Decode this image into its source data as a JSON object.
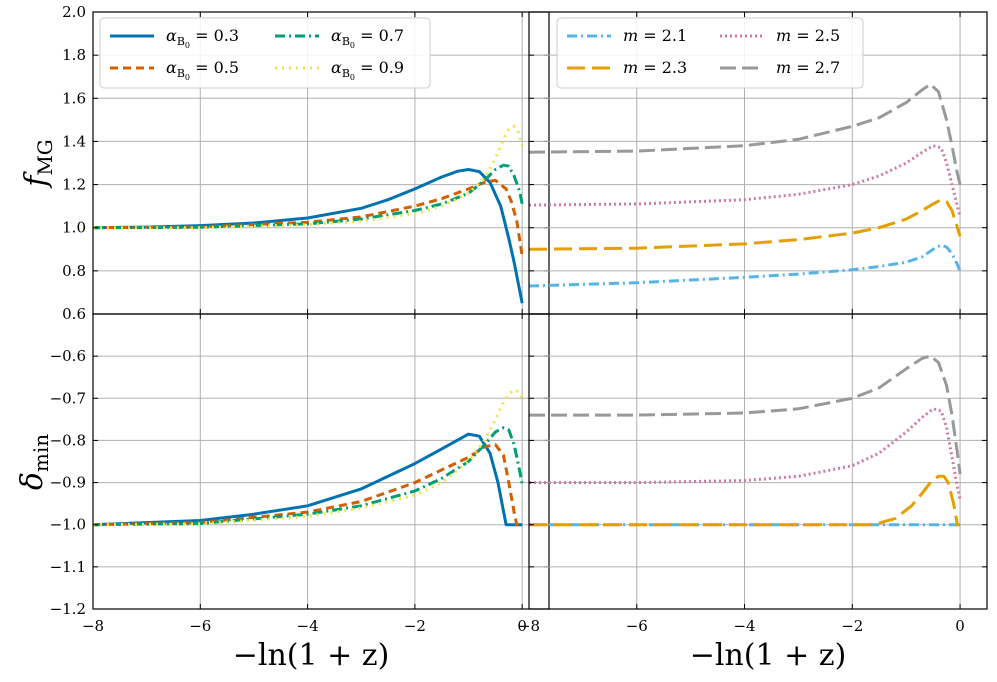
{
  "figure": {
    "ylabel_top": "f_MG",
    "ylabel_bottom": "δ_min",
    "xlabel": "−ln(1 + z)"
  },
  "chart_data": [
    {
      "id": "fmg-alpha",
      "type": "line",
      "title": "",
      "xlabel": "",
      "ylabel": "f_MG",
      "xlim": [
        -8,
        0.5
      ],
      "ylim": [
        0.6,
        2.0
      ],
      "xticks": [
        -8,
        -6,
        -4,
        -2,
        0
      ],
      "yticks": [
        0.6,
        0.8,
        1.0,
        1.2,
        1.4,
        1.6,
        1.8,
        2.0
      ],
      "ytick_labels": [
        "0.6",
        "0.8",
        "1.0",
        "1.2",
        "1.4",
        "1.6",
        "1.8",
        "2.0"
      ],
      "show_xtick_labels": false,
      "show_ytick_labels": true,
      "grid": true,
      "legend_position": "top-left",
      "legend_columns": 2,
      "series": [
        {
          "name": "α_B0 = 0.3",
          "label_value": "0.3",
          "color": "#0072b2",
          "dash": "solid",
          "x": [
            -8,
            -7,
            -6,
            -5,
            -4,
            -3,
            -2.5,
            -2,
            -1.5,
            -1.2,
            -1,
            -0.8,
            -0.6,
            -0.4,
            -0.25,
            -0.15,
            0
          ],
          "y": [
            1.0,
            1.003,
            1.01,
            1.022,
            1.045,
            1.09,
            1.13,
            1.18,
            1.235,
            1.262,
            1.27,
            1.26,
            1.21,
            1.1,
            0.95,
            0.84,
            0.65
          ]
        },
        {
          "name": "α_B0 = 0.5",
          "label_value": "0.5",
          "color": "#d55e00",
          "dash": "8,5",
          "x": [
            -8,
            -6,
            -4,
            -3,
            -2,
            -1.5,
            -1,
            -0.7,
            -0.5,
            -0.3,
            -0.2,
            -0.1,
            0
          ],
          "y": [
            1.0,
            1.004,
            1.025,
            1.05,
            1.1,
            1.135,
            1.18,
            1.21,
            1.22,
            1.18,
            1.12,
            1.03,
            0.87
          ]
        },
        {
          "name": "α_B0 = 0.7",
          "label_value": "0.7",
          "color": "#009e73",
          "dash": "10,4,2,4",
          "x": [
            -8,
            -6,
            -4,
            -3,
            -2,
            -1.5,
            -1,
            -0.7,
            -0.5,
            -0.35,
            -0.25,
            -0.15,
            -0.05,
            0
          ],
          "y": [
            1.0,
            1.002,
            1.018,
            1.04,
            1.08,
            1.11,
            1.16,
            1.22,
            1.27,
            1.29,
            1.285,
            1.24,
            1.17,
            1.11
          ]
        },
        {
          "name": "α_B0 = 0.9",
          "label_value": "0.9",
          "color": "#f0e442",
          "dash": "2,5",
          "x": [
            -8,
            -6,
            -4,
            -3,
            -2,
            -1.5,
            -1,
            -0.7,
            -0.5,
            -0.35,
            -0.25,
            -0.15,
            -0.08,
            0
          ],
          "y": [
            1.0,
            1.0,
            1.014,
            1.03,
            1.065,
            1.1,
            1.16,
            1.23,
            1.32,
            1.41,
            1.455,
            1.47,
            1.45,
            1.38
          ]
        }
      ]
    },
    {
      "id": "fmg-m",
      "type": "line",
      "title": "",
      "xlabel": "",
      "ylabel": "",
      "xlim": [
        -8,
        0.5
      ],
      "ylim": [
        0.6,
        2.0
      ],
      "xticks": [
        -8,
        -6,
        -4,
        -2,
        0
      ],
      "yticks": [
        0.6,
        0.8,
        1.0,
        1.2,
        1.4,
        1.6,
        1.8,
        2.0
      ],
      "show_xtick_labels": false,
      "show_ytick_labels": false,
      "grid": true,
      "legend_position": "top-left",
      "legend_columns": 2,
      "series": [
        {
          "name": "m = 2.1",
          "label_value": "2.1",
          "color": "#56b4e9",
          "dash": "10,4,2,4",
          "x": [
            -8,
            -6,
            -4,
            -3,
            -2,
            -1.5,
            -1,
            -0.7,
            -0.5,
            -0.35,
            -0.25,
            -0.15,
            -0.05,
            0
          ],
          "y": [
            0.73,
            0.745,
            0.77,
            0.785,
            0.805,
            0.82,
            0.84,
            0.865,
            0.9,
            0.92,
            0.91,
            0.88,
            0.83,
            0.8
          ]
        },
        {
          "name": "m = 2.3",
          "label_value": "2.3",
          "color": "#e69f00",
          "dash": "18,7",
          "x": [
            -8,
            -6,
            -4,
            -3,
            -2,
            -1.5,
            -1,
            -0.7,
            -0.5,
            -0.35,
            -0.25,
            -0.15,
            -0.05,
            0
          ],
          "y": [
            0.9,
            0.905,
            0.925,
            0.945,
            0.975,
            1.0,
            1.04,
            1.08,
            1.11,
            1.13,
            1.12,
            1.08,
            1.0,
            0.96
          ]
        },
        {
          "name": "m = 2.5",
          "label_value": "2.5",
          "color": "#cc79a7",
          "dash": "2,3",
          "x": [
            -8,
            -6,
            -4,
            -3,
            -2,
            -1.5,
            -1,
            -0.7,
            -0.5,
            -0.35,
            -0.25,
            -0.15,
            -0.05,
            0
          ],
          "y": [
            1.105,
            1.11,
            1.13,
            1.155,
            1.2,
            1.24,
            1.3,
            1.35,
            1.38,
            1.37,
            1.3,
            1.2,
            1.1,
            1.05
          ]
        },
        {
          "name": "m = 2.7",
          "label_value": "2.7",
          "color": "#999999",
          "dash": "16,6",
          "x": [
            -8,
            -6,
            -4,
            -3,
            -2,
            -1.5,
            -1,
            -0.7,
            -0.55,
            -0.4,
            -0.25,
            -0.15,
            -0.05,
            0
          ],
          "y": [
            1.35,
            1.355,
            1.38,
            1.41,
            1.47,
            1.51,
            1.58,
            1.64,
            1.665,
            1.63,
            1.5,
            1.38,
            1.25,
            1.2
          ]
        }
      ]
    },
    {
      "id": "dmin-alpha",
      "type": "line",
      "title": "",
      "xlabel": "−ln(1 + z)",
      "ylabel": "δ_min",
      "xlim": [
        -8,
        0.5
      ],
      "ylim": [
        -1.2,
        -0.5
      ],
      "xticks": [
        -8,
        -6,
        -4,
        -2,
        0
      ],
      "xtick_labels": [
        "−8",
        "−6",
        "−4",
        "−2",
        "0"
      ],
      "yticks": [
        -1.2,
        -1.1,
        -1.0,
        -0.9,
        -0.8,
        -0.7,
        -0.6,
        -0.5
      ],
      "ytick_labels": [
        "−1.2",
        "−1.1",
        "−1.0",
        "−0.9",
        "−0.8",
        "−0.7",
        "−0.6",
        ""
      ],
      "show_xtick_labels": true,
      "show_ytick_labels": true,
      "grid": true,
      "series": [
        {
          "name": "α_B0 = 0.3",
          "color": "#0072b2",
          "dash": "solid",
          "x": [
            -8,
            -6,
            -5,
            -4,
            -3,
            -2,
            -1.5,
            -1,
            -0.8,
            -0.6,
            -0.45,
            -0.3,
            -0.2,
            0
          ],
          "y": [
            -1.0,
            -0.99,
            -0.975,
            -0.955,
            -0.915,
            -0.855,
            -0.82,
            -0.785,
            -0.79,
            -0.83,
            -0.9,
            -1.0,
            -1.0,
            -1.0
          ]
        },
        {
          "name": "α_B0 = 0.5",
          "color": "#d55e00",
          "dash": "8,5",
          "x": [
            -8,
            -6,
            -4,
            -3,
            -2,
            -1.5,
            -1,
            -0.7,
            -0.5,
            -0.35,
            -0.25,
            -0.15,
            -0.1,
            0
          ],
          "y": [
            -1.0,
            -0.995,
            -0.97,
            -0.945,
            -0.9,
            -0.87,
            -0.84,
            -0.815,
            -0.81,
            -0.835,
            -0.9,
            -0.97,
            -1.0,
            -1.0
          ]
        },
        {
          "name": "α_B0 = 0.7",
          "color": "#009e73",
          "dash": "10,4,2,4",
          "x": [
            -8,
            -6,
            -4,
            -3,
            -2,
            -1.5,
            -1,
            -0.7,
            -0.5,
            -0.35,
            -0.25,
            -0.15,
            -0.05,
            0
          ],
          "y": [
            -1.0,
            -0.997,
            -0.975,
            -0.955,
            -0.92,
            -0.89,
            -0.85,
            -0.81,
            -0.78,
            -0.77,
            -0.775,
            -0.81,
            -0.87,
            -0.905
          ]
        },
        {
          "name": "α_B0 = 0.9",
          "color": "#f0e442",
          "dash": "2,5",
          "x": [
            -8,
            -6,
            -4,
            -3,
            -2,
            -1.5,
            -1,
            -0.7,
            -0.5,
            -0.35,
            -0.25,
            -0.15,
            -0.05,
            0
          ],
          "y": [
            -1.0,
            -0.998,
            -0.98,
            -0.96,
            -0.93,
            -0.9,
            -0.85,
            -0.8,
            -0.75,
            -0.71,
            -0.69,
            -0.68,
            -0.685,
            -0.7
          ]
        }
      ]
    },
    {
      "id": "dmin-m",
      "type": "line",
      "title": "",
      "xlabel": "−ln(1 + z)",
      "ylabel": "",
      "xlim": [
        -8,
        0.5
      ],
      "ylim": [
        -1.2,
        -0.5
      ],
      "xticks": [
        -8,
        -6,
        -4,
        -2,
        0
      ],
      "xtick_labels": [
        "−8",
        "−6",
        "−4",
        "−2",
        "0"
      ],
      "yticks": [
        -1.2,
        -1.1,
        -1.0,
        -0.9,
        -0.8,
        -0.7,
        -0.6,
        -0.5
      ],
      "show_xtick_labels": true,
      "show_ytick_labels": false,
      "grid": true,
      "series": [
        {
          "name": "m = 2.1",
          "color": "#56b4e9",
          "dash": "10,4,2,4",
          "x": [
            -8,
            -4,
            -2,
            -1,
            0
          ],
          "y": [
            -1.0,
            -1.0,
            -1.0,
            -1.0,
            -1.0
          ]
        },
        {
          "name": "m = 2.3",
          "color": "#e69f00",
          "dash": "18,7",
          "x": [
            -8,
            -4,
            -2,
            -1.6,
            -1.2,
            -0.9,
            -0.7,
            -0.55,
            -0.4,
            -0.3,
            -0.22,
            -0.12,
            -0.05,
            0
          ],
          "y": [
            -1.0,
            -1.0,
            -1.0,
            -1.0,
            -0.985,
            -0.955,
            -0.925,
            -0.9,
            -0.885,
            -0.885,
            -0.9,
            -0.95,
            -1.0,
            -1.0
          ]
        },
        {
          "name": "m = 2.5",
          "color": "#cc79a7",
          "dash": "2,3",
          "x": [
            -8,
            -6,
            -4,
            -3,
            -2,
            -1.5,
            -1,
            -0.7,
            -0.5,
            -0.35,
            -0.25,
            -0.15,
            -0.05,
            0
          ],
          "y": [
            -0.9,
            -0.9,
            -0.895,
            -0.885,
            -0.86,
            -0.83,
            -0.78,
            -0.745,
            -0.725,
            -0.73,
            -0.77,
            -0.84,
            -0.91,
            -0.94
          ]
        },
        {
          "name": "m = 2.7",
          "color": "#999999",
          "dash": "16,6",
          "x": [
            -8,
            -6,
            -4,
            -3,
            -2,
            -1.5,
            -1,
            -0.7,
            -0.55,
            -0.4,
            -0.25,
            -0.15,
            -0.05,
            0
          ],
          "y": [
            -0.74,
            -0.74,
            -0.735,
            -0.725,
            -0.7,
            -0.675,
            -0.63,
            -0.605,
            -0.6,
            -0.615,
            -0.67,
            -0.74,
            -0.83,
            -0.88
          ]
        }
      ]
    }
  ]
}
